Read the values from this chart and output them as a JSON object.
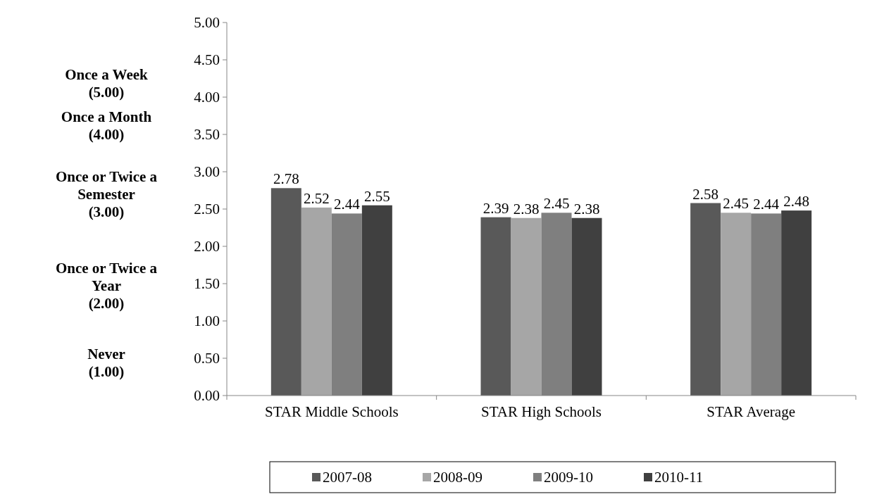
{
  "chart_data": {
    "type": "bar",
    "categories": [
      "STAR Middle Schools",
      "STAR High Schools",
      "STAR Average"
    ],
    "series": [
      {
        "name": "2007-08",
        "color": "#595959",
        "values": [
          2.78,
          2.39,
          2.58
        ]
      },
      {
        "name": "2008-09",
        "color": "#a6a6a6",
        "values": [
          2.52,
          2.38,
          2.45
        ]
      },
      {
        "name": "2009-10",
        "color": "#7f7f7f",
        "values": [
          2.44,
          2.45,
          2.44
        ]
      },
      {
        "name": "2010-11",
        "color": "#404040",
        "values": [
          2.55,
          2.38,
          2.48
        ]
      }
    ],
    "ylim": [
      0,
      5
    ],
    "yticks": [
      {
        "value": 0,
        "label": "0.00"
      },
      {
        "value": 0.5,
        "label": "0.50"
      },
      {
        "value": 1,
        "label": "1.00"
      },
      {
        "value": 1.5,
        "label": "1.50"
      },
      {
        "value": 2,
        "label": "2.00"
      },
      {
        "value": 2.5,
        "label": "2.50"
      },
      {
        "value": 3,
        "label": "3.00"
      },
      {
        "value": 3.5,
        "label": "3.50"
      },
      {
        "value": 4,
        "label": "4.00"
      },
      {
        "value": 4.5,
        "label": "4.50"
      },
      {
        "value": 5,
        "label": "5.00"
      }
    ],
    "annotations": [
      "Once a Week\n(5.00)",
      "Once a Month\n(4.00)",
      "Once or Twice a\nSemester\n(3.00)",
      "Once or Twice a\nYear\n(2.00)",
      "Never\n(1.00)"
    ],
    "data_labels": true,
    "legend": "bottom",
    "grid": false
  }
}
